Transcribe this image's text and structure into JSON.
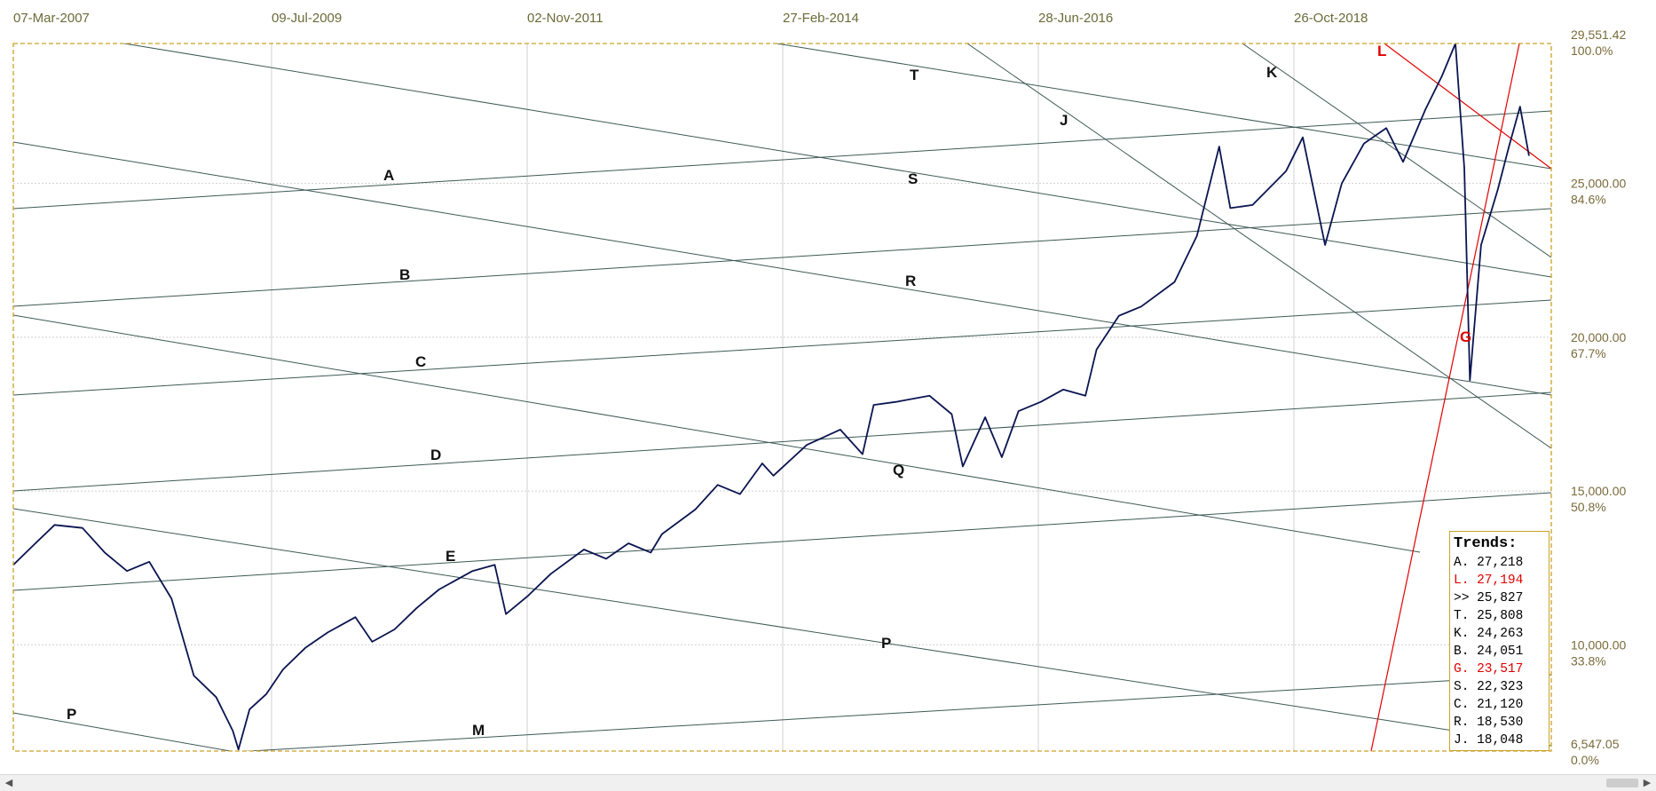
{
  "chart_data": {
    "type": "line",
    "x_dates": [
      "07-Mar-2007",
      "09-Jul-2009",
      "02-Nov-2011",
      "27-Feb-2014",
      "28-Jun-2016",
      "26-Oct-2018"
    ],
    "y_ticks": [
      {
        "value": "29,551.42",
        "pct": "100.0%"
      },
      {
        "value": "25,000.00",
        "pct": "84.6%"
      },
      {
        "value": "20,000.00",
        "pct": "67.7%"
      },
      {
        "value": "15,000.00",
        "pct": "50.8%"
      },
      {
        "value": "10,000.00",
        "pct": "33.8%"
      },
      {
        "value": "6,547.05",
        "pct": "0.0%"
      }
    ],
    "ylim": [
      6547.05,
      29551.42
    ],
    "xlim": [
      2007.18,
      2020.98
    ],
    "series": [
      {
        "color": "#0a1450",
        "points": [
          [
            2007.18,
            12600
          ],
          [
            2007.35,
            13200
          ],
          [
            2007.55,
            13900
          ],
          [
            2007.8,
            13800
          ],
          [
            2008.0,
            13000
          ],
          [
            2008.2,
            12400
          ],
          [
            2008.4,
            12700
          ],
          [
            2008.6,
            11500
          ],
          [
            2008.8,
            9000
          ],
          [
            2009.0,
            8300
          ],
          [
            2009.15,
            7200
          ],
          [
            2009.2,
            6600
          ],
          [
            2009.3,
            7900
          ],
          [
            2009.45,
            8400
          ],
          [
            2009.6,
            9200
          ],
          [
            2009.8,
            9900
          ],
          [
            2010.0,
            10400
          ],
          [
            2010.25,
            10900
          ],
          [
            2010.4,
            10100
          ],
          [
            2010.6,
            10500
          ],
          [
            2010.8,
            11200
          ],
          [
            2011.0,
            11800
          ],
          [
            2011.3,
            12400
          ],
          [
            2011.5,
            12600
          ],
          [
            2011.6,
            11000
          ],
          [
            2011.8,
            11600
          ],
          [
            2012.0,
            12300
          ],
          [
            2012.3,
            13100
          ],
          [
            2012.5,
            12800
          ],
          [
            2012.7,
            13300
          ],
          [
            2012.9,
            13000
          ],
          [
            2013.0,
            13600
          ],
          [
            2013.3,
            14400
          ],
          [
            2013.5,
            15200
          ],
          [
            2013.7,
            14900
          ],
          [
            2013.9,
            15900
          ],
          [
            2014.0,
            15500
          ],
          [
            2014.3,
            16500
          ],
          [
            2014.6,
            17000
          ],
          [
            2014.8,
            16200
          ],
          [
            2014.9,
            17800
          ],
          [
            2015.1,
            17900
          ],
          [
            2015.4,
            18100
          ],
          [
            2015.6,
            17500
          ],
          [
            2015.7,
            15800
          ],
          [
            2015.9,
            17400
          ],
          [
            2016.05,
            16100
          ],
          [
            2016.2,
            17600
          ],
          [
            2016.4,
            17900
          ],
          [
            2016.6,
            18300
          ],
          [
            2016.8,
            18100
          ],
          [
            2016.9,
            19600
          ],
          [
            2017.1,
            20700
          ],
          [
            2017.3,
            21000
          ],
          [
            2017.6,
            21800
          ],
          [
            2017.8,
            23300
          ],
          [
            2018.0,
            26200
          ],
          [
            2018.1,
            24200
          ],
          [
            2018.3,
            24300
          ],
          [
            2018.6,
            25400
          ],
          [
            2018.75,
            26500
          ],
          [
            2018.95,
            23000
          ],
          [
            2019.1,
            25000
          ],
          [
            2019.3,
            26300
          ],
          [
            2019.5,
            26800
          ],
          [
            2019.65,
            25700
          ],
          [
            2019.85,
            27400
          ],
          [
            2020.0,
            28500
          ],
          [
            2020.12,
            29550
          ],
          [
            2020.2,
            25500
          ],
          [
            2020.25,
            18600
          ],
          [
            2020.35,
            23000
          ],
          [
            2020.5,
            24800
          ],
          [
            2020.6,
            26200
          ],
          [
            2020.7,
            27500
          ],
          [
            2020.78,
            25900
          ]
        ]
      }
    ],
    "trendlines": [
      {
        "label": "A",
        "value": "27,218",
        "red": false
      },
      {
        "label": "L",
        "value": "27,194",
        "red": true
      },
      {
        "label": ">>",
        "value": "25,827",
        "red": false
      },
      {
        "label": "T",
        "value": "25,808",
        "red": false
      },
      {
        "label": "K",
        "value": "24,263",
        "red": false
      },
      {
        "label": "B",
        "value": "24,051",
        "red": false
      },
      {
        "label": "G",
        "value": "23,517",
        "red": true
      },
      {
        "label": "S",
        "value": "22,323",
        "red": false
      },
      {
        "label": "C",
        "value": "21,120",
        "red": false
      },
      {
        "label": "R",
        "value": "18,530",
        "red": false
      },
      {
        "label": "J",
        "value": "18,048",
        "red": false
      }
    ],
    "line_labels": [
      "A",
      "B",
      "C",
      "D",
      "E",
      "M",
      "P",
      "P",
      "Q",
      "R",
      "S",
      "T",
      "J",
      "K",
      "L",
      "G"
    ],
    "grid": true
  },
  "legend": {
    "title": "Trends:"
  },
  "colors": {
    "price": "#0a1450",
    "trend": "#3d5a55",
    "trend_red": "#e00000",
    "frame": "#c9a227",
    "grid": "#d0d0d0"
  },
  "scrollbar": {
    "left_icon": "chevron-left-icon",
    "right_icon": "chevron-right-icon"
  }
}
